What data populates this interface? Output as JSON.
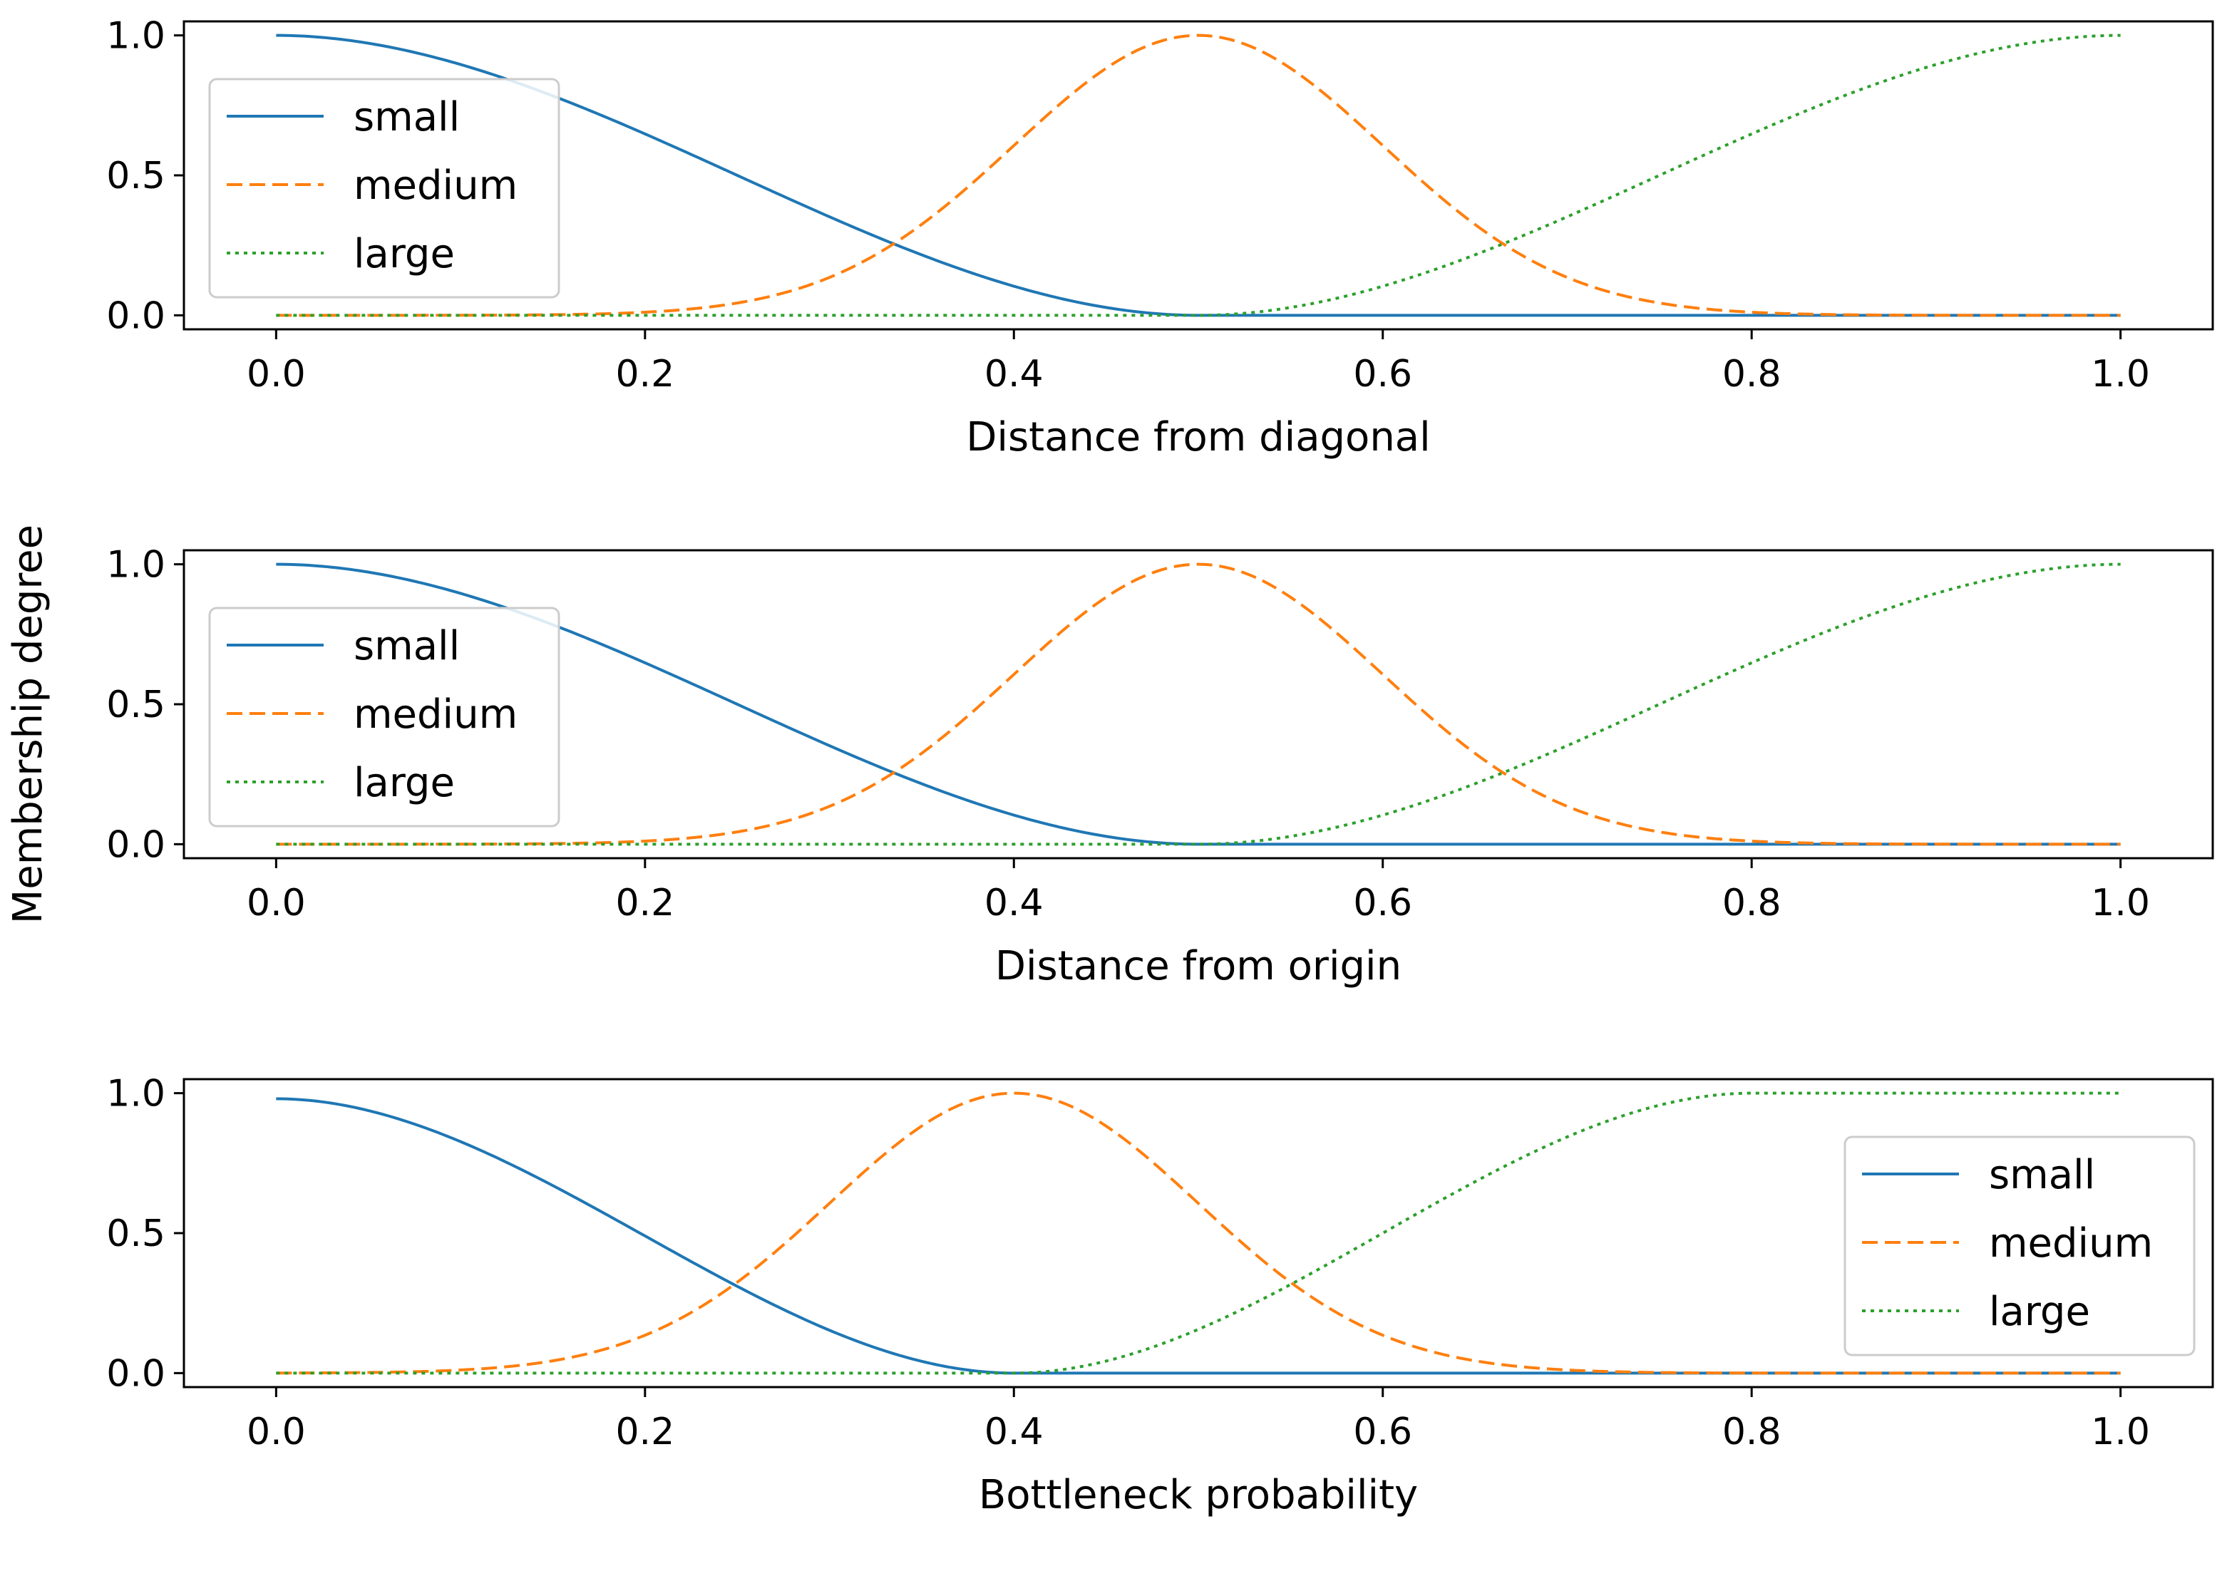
{
  "figure": {
    "ylabel": "Membership degree"
  },
  "chart_data": [
    {
      "type": "line",
      "xlabel": "Distance from diagonal",
      "ylabel": "Membership degree",
      "xlim": [
        -0.05,
        1.05
      ],
      "ylim": [
        -0.05,
        1.05
      ],
      "xticks": [
        "0.0",
        "0.2",
        "0.4",
        "0.6",
        "0.8",
        "1.0"
      ],
      "yticks": [
        "0.0",
        "0.5",
        "1.0"
      ],
      "legend_position": "center-left",
      "series": [
        {
          "name": "small",
          "kind": "zshape",
          "a": 0.0,
          "b": 0.5,
          "amp": 1.0,
          "color": "#1f77b4",
          "dash": "solid"
        },
        {
          "name": "medium",
          "kind": "gauss",
          "mean": 0.5,
          "sigma": 0.1,
          "amp": 1.0,
          "color": "#ff7f0e",
          "dash": "dashed"
        },
        {
          "name": "large",
          "kind": "sshape",
          "a": 0.5,
          "b": 1.0,
          "amp": 1.0,
          "color": "#2ca02c",
          "dash": "dotted"
        }
      ]
    },
    {
      "type": "line",
      "xlabel": "Distance from origin",
      "ylabel": "Membership degree",
      "xlim": [
        -0.05,
        1.05
      ],
      "ylim": [
        -0.05,
        1.05
      ],
      "xticks": [
        "0.0",
        "0.2",
        "0.4",
        "0.6",
        "0.8",
        "1.0"
      ],
      "yticks": [
        "0.0",
        "0.5",
        "1.0"
      ],
      "legend_position": "center-left",
      "series": [
        {
          "name": "small",
          "kind": "zshape",
          "a": 0.0,
          "b": 0.5,
          "amp": 1.0,
          "color": "#1f77b4",
          "dash": "solid"
        },
        {
          "name": "medium",
          "kind": "gauss",
          "mean": 0.5,
          "sigma": 0.1,
          "amp": 1.0,
          "color": "#ff7f0e",
          "dash": "dashed"
        },
        {
          "name": "large",
          "kind": "sshape",
          "a": 0.5,
          "b": 1.0,
          "amp": 1.0,
          "color": "#2ca02c",
          "dash": "dotted"
        }
      ]
    },
    {
      "type": "line",
      "xlabel": "Bottleneck probability",
      "ylabel": "Membership degree",
      "xlim": [
        -0.05,
        1.05
      ],
      "ylim": [
        -0.05,
        1.05
      ],
      "xticks": [
        "0.0",
        "0.2",
        "0.4",
        "0.6",
        "0.8",
        "1.0"
      ],
      "yticks": [
        "0.0",
        "0.5",
        "1.0"
      ],
      "legend_position": "center-right",
      "series": [
        {
          "name": "small",
          "kind": "zshape",
          "a": 0.0,
          "b": 0.4,
          "amp": 0.98,
          "color": "#1f77b4",
          "dash": "solid"
        },
        {
          "name": "medium",
          "kind": "gauss",
          "mean": 0.4,
          "sigma": 0.1,
          "amp": 1.0,
          "color": "#ff7f0e",
          "dash": "dashed"
        },
        {
          "name": "large",
          "kind": "sshape",
          "a": 0.4,
          "b": 0.8,
          "amp": 1.0,
          "color": "#2ca02c",
          "dash": "dotted"
        }
      ]
    }
  ]
}
